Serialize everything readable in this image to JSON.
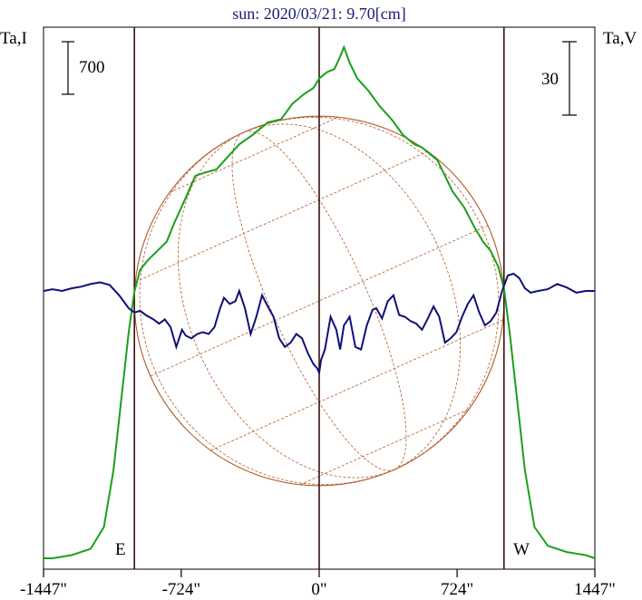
{
  "chart_data": {
    "type": "line",
    "title": "sun: 2020/03/21: 9.70[cm]",
    "y_left_label": "Ta,I",
    "y_right_label": "Ta,V",
    "scale_bar_left": "700",
    "scale_bar_right": "30",
    "limb_labels": {
      "east": "E",
      "west": "W"
    },
    "x_tick_labels": [
      "-1447\"",
      "-724\"",
      "0\"",
      "724\"",
      "1447\""
    ],
    "x_tick_values": [
      -1447,
      -724,
      0,
      724,
      1447
    ],
    "xlim": [
      -1447,
      1447
    ],
    "limb_arcsec": 970,
    "series": [
      {
        "color": "#1aa01a",
        "x": [
          -1447,
          -1400,
          -1300,
          -1200,
          -1130,
          -1080,
          -1040,
          -1000,
          -970,
          -940,
          -900,
          -850,
          -800,
          -760,
          -700,
          -650,
          -600,
          -540,
          -480,
          -420,
          -350,
          -270,
          -200,
          -140,
          -80,
          -30,
          0,
          40,
          80,
          110,
          130,
          160,
          200,
          260,
          320,
          380,
          440,
          500,
          540,
          580,
          620,
          660,
          700,
          760,
          820,
          860,
          900,
          940,
          970,
          1000,
          1040,
          1080,
          1130,
          1200,
          1300,
          1400,
          1447
        ],
        "y": [
          0.0,
          0.0,
          0.01,
          0.03,
          0.1,
          0.28,
          0.5,
          0.72,
          0.85,
          0.92,
          0.95,
          0.98,
          1.01,
          1.07,
          1.15,
          1.22,
          1.23,
          1.24,
          1.28,
          1.32,
          1.35,
          1.39,
          1.4,
          1.45,
          1.48,
          1.5,
          1.53,
          1.55,
          1.56,
          1.6,
          1.63,
          1.58,
          1.53,
          1.49,
          1.44,
          1.4,
          1.35,
          1.32,
          1.31,
          1.29,
          1.27,
          1.22,
          1.17,
          1.12,
          1.05,
          1.01,
          0.98,
          0.93,
          0.86,
          0.72,
          0.5,
          0.28,
          0.1,
          0.04,
          0.02,
          0.01,
          0.0
        ]
      },
      {
        "color": "#10107a",
        "x": [
          -1447,
          -1400,
          -1350,
          -1300,
          -1250,
          -1200,
          -1150,
          -1100,
          -1050,
          -1000,
          -970,
          -940,
          -910,
          -870,
          -840,
          -810,
          -780,
          -750,
          -720,
          -700,
          -670,
          -640,
          -610,
          -580,
          -550,
          -520,
          -500,
          -470,
          -440,
          -420,
          -390,
          -360,
          -330,
          -300,
          -270,
          -240,
          -210,
          -180,
          -150,
          -120,
          -90,
          -60,
          -30,
          -10,
          0,
          10,
          30,
          60,
          90,
          110,
          130,
          160,
          190,
          220,
          250,
          280,
          300,
          330,
          360,
          390,
          420,
          450,
          480,
          510,
          540,
          570,
          600,
          630,
          660,
          690,
          720,
          750,
          780,
          810,
          840,
          870,
          900,
          930,
          960,
          990,
          1020,
          1050,
          1080,
          1110,
          1150,
          1200,
          1250,
          1300,
          1350,
          1400,
          1447
        ],
        "y": [
          0.0,
          0.2,
          0.0,
          0.3,
          0.5,
          0.8,
          1.0,
          0.7,
          -0.5,
          -2.0,
          -2.5,
          -2.3,
          -2.8,
          -3.3,
          -3.8,
          -3.3,
          -4.2,
          -6.5,
          -4.5,
          -5.2,
          -5.5,
          -5.0,
          -4.8,
          -5.0,
          -4.2,
          -2.0,
          -0.8,
          -1.5,
          -1.2,
          0.0,
          -2.0,
          -5.0,
          -3.0,
          -0.5,
          -1.8,
          -3.0,
          -5.5,
          -6.5,
          -6.0,
          -5.0,
          -5.5,
          -7.2,
          -8.5,
          -9.0,
          -9.5,
          -8.0,
          -6.8,
          -3.0,
          -4.5,
          -6.8,
          -4.0,
          -3.0,
          -6.5,
          -6.8,
          -4.0,
          -2.2,
          -2.0,
          -3.2,
          -1.2,
          -0.5,
          -2.8,
          -3.0,
          -3.5,
          -3.8,
          -4.5,
          -3.2,
          -1.8,
          -3.0,
          -6.0,
          -5.5,
          -4.8,
          -3.0,
          -1.5,
          -0.5,
          -2.5,
          -4.0,
          -3.5,
          -2.5,
          0.0,
          1.8,
          2.0,
          1.5,
          0.3,
          -0.2,
          0.0,
          0.2,
          0.8,
          0.4,
          -0.2,
          0.0,
          0.0
        ]
      }
    ]
  }
}
